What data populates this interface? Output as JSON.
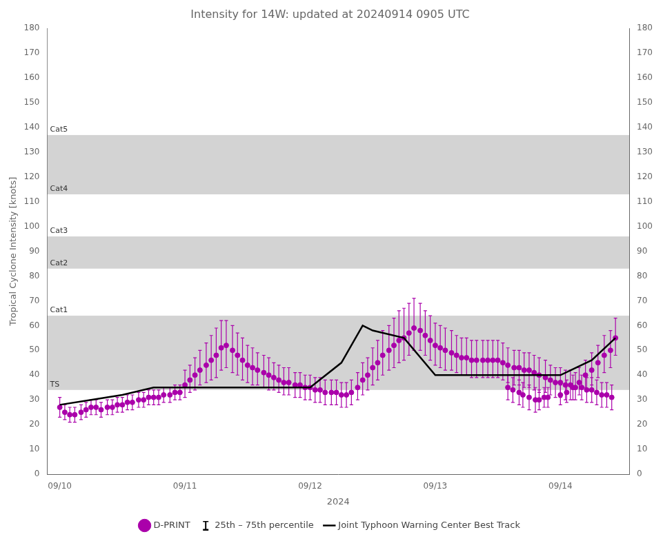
{
  "chart_data": {
    "type": "scatter",
    "title": "Intensity for 14W: updated at 20240914 0905 UTC",
    "x_label": "2024",
    "y_label": "Tropical Cyclone Intensity [knots]",
    "xlim": [
      -0.1,
      4.55
    ],
    "xticks": [
      {
        "value": 0,
        "label": "09/10"
      },
      {
        "value": 1,
        "label": "09/11"
      },
      {
        "value": 2,
        "label": "09/12"
      },
      {
        "value": 3,
        "label": "09/13"
      },
      {
        "value": 4,
        "label": "09/14"
      }
    ],
    "ylim": [
      0,
      180
    ],
    "yticks": [
      0,
      10,
      20,
      30,
      40,
      50,
      60,
      70,
      80,
      90,
      100,
      110,
      120,
      130,
      140,
      150,
      160,
      170,
      180
    ],
    "y2lim": [
      0,
      180
    ],
    "y2ticks": [
      0,
      10,
      20,
      30,
      40,
      50,
      60,
      70,
      80,
      90,
      100,
      110,
      120,
      130,
      140,
      150,
      160,
      170,
      180
    ],
    "grid": false,
    "legend": "bottom",
    "bands": [
      {
        "name": "TS",
        "ymin": 34,
        "ymax": 64,
        "color": "#d3d3d3"
      },
      {
        "name": "Cat1",
        "ymin": 64,
        "ymax": 83,
        "color": "#ffffff"
      },
      {
        "name": "Cat2",
        "ymin": 83,
        "ymax": 96,
        "color": "#d3d3d3"
      },
      {
        "name": "Cat3",
        "ymin": 96,
        "ymax": 113,
        "color": "#ffffff"
      },
      {
        "name": "Cat4",
        "ymin": 113,
        "ymax": 137,
        "color": "#d3d3d3"
      },
      {
        "name": "Cat5",
        "ymin": 137,
        "ymax": 180,
        "color": "#ffffff"
      }
    ],
    "series": [
      {
        "name": "D-PRINT",
        "type": "scatter",
        "marker": "circle",
        "color": "#aa00aa",
        "error_label": "25th – 75th percentile",
        "x": [
          0,
          0.04,
          0.08,
          0.12,
          0.17,
          0.21,
          0.25,
          0.29,
          0.33,
          0.38,
          0.42,
          0.46,
          0.5,
          0.54,
          0.58,
          0.63,
          0.67,
          0.71,
          0.75,
          0.79,
          0.83,
          0.88,
          0.92,
          0.96,
          1,
          1.04,
          1.08,
          1.12,
          1.17,
          1.21,
          1.25,
          1.29,
          1.33,
          1.38,
          1.42,
          1.46,
          1.5,
          1.54,
          1.58,
          1.63,
          1.67,
          1.71,
          1.75,
          1.79,
          1.83,
          1.88,
          1.92,
          1.96,
          2,
          2.04,
          2.08,
          2.12,
          2.17,
          2.21,
          2.25,
          2.29,
          2.33,
          2.38,
          2.42,
          2.46,
          2.5,
          2.54,
          2.58,
          2.63,
          2.67,
          2.71,
          2.75,
          2.79,
          2.83,
          2.88,
          2.92,
          2.96,
          3,
          3.04,
          3.08,
          3.13,
          3.17,
          3.21,
          3.25,
          3.29,
          3.33,
          3.38,
          3.42,
          3.46,
          3.5,
          3.54,
          3.58,
          3.63,
          3.67,
          3.71,
          3.75,
          3.79,
          3.83,
          3.88,
          3.92,
          3.96,
          4,
          4.04,
          4.08,
          4.12,
          4.17,
          4.21,
          4.25,
          4.29,
          4.33,
          4.37,
          4.41,
          3.58,
          3.62,
          3.67,
          3.7,
          3.75,
          3.8,
          3.83,
          3.87,
          3.9,
          4,
          4.05,
          4.1,
          4.15,
          4.2,
          4.25,
          4.3,
          4.35,
          4.4,
          4.44
        ],
        "values": [
          27,
          25,
          24,
          24,
          25,
          26,
          27,
          27,
          26,
          27,
          27,
          28,
          28,
          29,
          29,
          30,
          30,
          31,
          31,
          31,
          32,
          32,
          33,
          33,
          36,
          38,
          40,
          42,
          44,
          46,
          48,
          51,
          52,
          50,
          48,
          46,
          44,
          43,
          42,
          41,
          40,
          39,
          38,
          37,
          37,
          36,
          36,
          35,
          35,
          34,
          34,
          33,
          33,
          33,
          32,
          32,
          33,
          35,
          38,
          40,
          43,
          45,
          48,
          50,
          52,
          54,
          55,
          57,
          59,
          58,
          56,
          54,
          52,
          51,
          50,
          49,
          48,
          47,
          47,
          46,
          46,
          46,
          46,
          46,
          46,
          45,
          44,
          43,
          43,
          42,
          42,
          41,
          40,
          39,
          38,
          37,
          37,
          36,
          36,
          35,
          35,
          34,
          34,
          33,
          32,
          32,
          31,
          35,
          34,
          33,
          32,
          31,
          30,
          30,
          31,
          31,
          32,
          33,
          35,
          37,
          40,
          42,
          45,
          48,
          50,
          55
        ],
        "error_low": [
          4,
          3,
          3,
          3,
          3,
          3,
          3,
          3,
          3,
          3,
          3,
          3,
          3,
          3,
          3,
          3,
          3,
          3,
          3,
          3,
          3,
          3,
          3,
          3,
          5,
          5,
          6,
          6,
          7,
          8,
          9,
          9,
          9,
          9,
          8,
          8,
          7,
          7,
          6,
          6,
          6,
          5,
          5,
          5,
          5,
          5,
          5,
          5,
          5,
          5,
          5,
          5,
          5,
          5,
          5,
          5,
          5,
          5,
          6,
          6,
          7,
          7,
          8,
          8,
          9,
          9,
          9,
          9,
          9,
          8,
          8,
          8,
          8,
          8,
          8,
          7,
          7,
          7,
          7,
          7,
          7,
          7,
          7,
          7,
          7,
          7,
          7,
          7,
          7,
          7,
          7,
          7,
          7,
          6,
          6,
          6,
          6,
          6,
          6,
          5,
          5,
          5,
          5,
          5,
          5,
          5,
          5,
          5,
          5,
          5,
          5,
          5,
          5,
          4,
          4,
          4,
          4,
          4,
          5,
          5,
          5,
          6,
          6,
          7,
          7,
          7
        ],
        "error_high": [
          4,
          3,
          3,
          3,
          3,
          3,
          3,
          3,
          3,
          3,
          3,
          3,
          3,
          3,
          3,
          3,
          3,
          3,
          3,
          3,
          3,
          3,
          3,
          3,
          6,
          6,
          7,
          8,
          9,
          10,
          11,
          11,
          10,
          10,
          9,
          9,
          8,
          8,
          7,
          7,
          7,
          6,
          6,
          6,
          6,
          5,
          5,
          5,
          5,
          5,
          5,
          5,
          5,
          5,
          5,
          5,
          5,
          6,
          7,
          7,
          8,
          9,
          10,
          10,
          11,
          12,
          12,
          12,
          12,
          11,
          10,
          10,
          9,
          9,
          9,
          9,
          8,
          8,
          8,
          8,
          8,
          8,
          8,
          8,
          8,
          8,
          7,
          7,
          7,
          7,
          7,
          7,
          7,
          7,
          6,
          6,
          6,
          6,
          6,
          6,
          5,
          5,
          5,
          5,
          5,
          5,
          5,
          5,
          5,
          5,
          5,
          5,
          5,
          4,
          4,
          4,
          4,
          5,
          5,
          6,
          6,
          7,
          7,
          8,
          8,
          8
        ]
      },
      {
        "name": "Joint Typhoon Warning Center Best Track",
        "type": "line",
        "line_style": "solid",
        "color": "#000000",
        "x": [
          0,
          0.25,
          0.5,
          0.75,
          1,
          1.25,
          1.5,
          1.75,
          2,
          2.25,
          2.42,
          2.5,
          2.75,
          3,
          3.25,
          3.5,
          3.75,
          4,
          4.25,
          4.44
        ],
        "values": [
          28,
          30,
          32,
          35,
          35,
          35,
          35,
          35,
          35,
          45,
          60,
          58,
          55,
          40,
          40,
          40,
          40,
          40,
          46,
          55
        ]
      }
    ]
  }
}
